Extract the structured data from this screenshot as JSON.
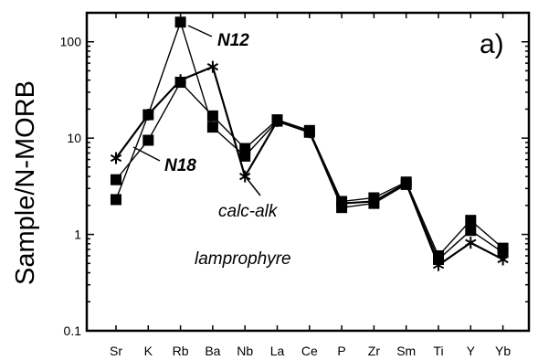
{
  "chart_data": {
    "type": "line",
    "ylabel": "Sample/N-MORB",
    "xlabel": "",
    "yscale": "log",
    "ylim": [
      0.1,
      200
    ],
    "yticks": [
      "0.1",
      "1",
      "10",
      "100"
    ],
    "panel_label": "a)",
    "categories": [
      "Sr",
      "K",
      "Rb",
      "Ba",
      "Nb",
      "La",
      "Ce",
      "P",
      "Zr",
      "Sm",
      "Ti",
      "Y",
      "Yb"
    ],
    "series": [
      {
        "name": "N12",
        "marker": "square",
        "values": [
          2.3,
          17.5,
          160,
          13,
          6.5,
          15,
          11.5,
          1.9,
          2.1,
          3.3,
          0.55,
          1.1,
          0.65
        ]
      },
      {
        "name": "N18",
        "marker": "square",
        "values": [
          3.7,
          9.5,
          38,
          17,
          7.8,
          15.5,
          12,
          2.2,
          2.4,
          3.5,
          0.6,
          1.4,
          0.72
        ]
      },
      {
        "name": "calc-alk lamprophyre",
        "marker": "asterisk",
        "values": [
          6.2,
          17.5,
          40,
          55,
          4.0,
          15,
          11.5,
          2.1,
          2.2,
          3.4,
          0.48,
          0.82,
          0.55
        ]
      }
    ],
    "annotations": [
      {
        "text": "N12",
        "style": "bold-italic"
      },
      {
        "text": "N18",
        "style": "bold-italic"
      },
      {
        "text": "calc-alk",
        "style": "italic"
      },
      {
        "text": "lamprophyre",
        "style": "italic"
      }
    ]
  }
}
